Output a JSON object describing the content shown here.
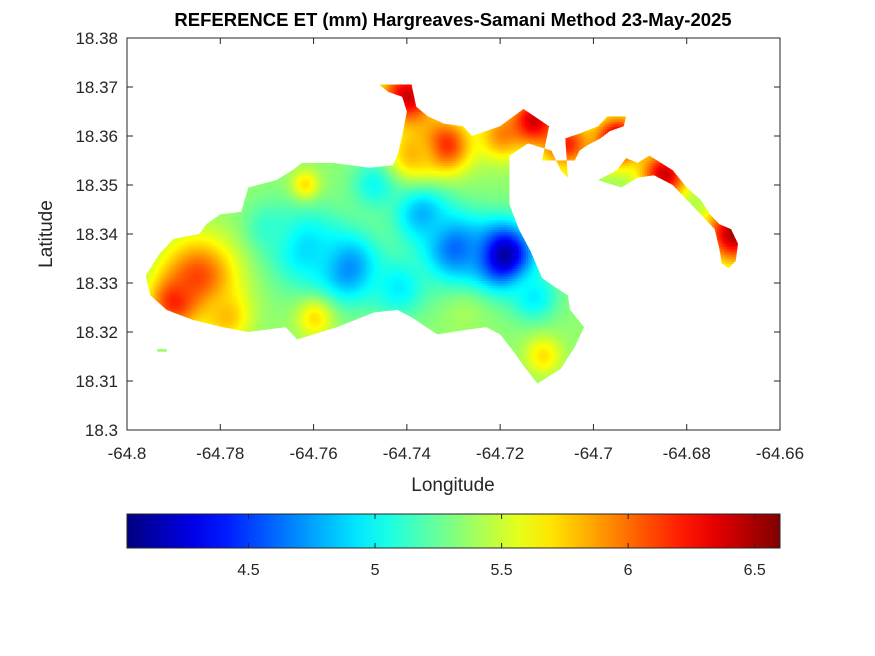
{
  "chart_data": {
    "type": "heatmap",
    "title": "REFERENCE ET (mm) Hargreaves-Samani Method  23-May-2025",
    "xlabel": "Longitude",
    "ylabel": "Latitude",
    "xlim": [
      -64.8,
      -64.66
    ],
    "ylim": [
      18.3,
      18.38
    ],
    "xticks": [
      -64.8,
      -64.78,
      -64.76,
      -64.74,
      -64.72,
      -64.7,
      -64.68,
      -64.66
    ],
    "xtick_labels": [
      "-64.8",
      "-64.78",
      "-64.76",
      "-64.74",
      "-64.72",
      "-64.7",
      "-64.68",
      "-64.66"
    ],
    "yticks": [
      18.3,
      18.31,
      18.32,
      18.33,
      18.34,
      18.35,
      18.36,
      18.37,
      18.38
    ],
    "ytick_labels": [
      "18.3",
      "18.31",
      "18.32",
      "18.33",
      "18.34",
      "18.35",
      "18.36",
      "18.37",
      "18.38"
    ],
    "colormap": "jet",
    "colorbar": {
      "orientation": "horizontal",
      "location": "bottom",
      "range": [
        4.02,
        6.6
      ],
      "ticks": [
        4.5,
        5,
        5.5,
        6,
        6.5
      ],
      "tick_labels": [
        "4.5",
        "5",
        "5.5",
        "6",
        "6.5"
      ]
    },
    "grid": false,
    "field": {
      "base_value": 5.35,
      "min_value": 4.02,
      "max_value": 6.6,
      "anchors": [
        {
          "lon": -64.7195,
          "lat": 18.3355,
          "value": 4.05,
          "spread": 0.0065
        },
        {
          "lon": -64.73,
          "lat": 18.337,
          "value": 4.6,
          "spread": 0.007
        },
        {
          "lon": -64.753,
          "lat": 18.333,
          "value": 4.65,
          "spread": 0.007
        },
        {
          "lon": -64.762,
          "lat": 18.337,
          "value": 4.9,
          "spread": 0.008
        },
        {
          "lon": -64.737,
          "lat": 18.344,
          "value": 4.8,
          "spread": 0.006
        },
        {
          "lon": -64.742,
          "lat": 18.329,
          "value": 4.95,
          "spread": 0.006
        },
        {
          "lon": -64.713,
          "lat": 18.327,
          "value": 4.95,
          "spread": 0.005
        },
        {
          "lon": -64.747,
          "lat": 18.35,
          "value": 5.0,
          "spread": 0.005
        },
        {
          "lon": -64.77,
          "lat": 18.341,
          "value": 5.1,
          "spread": 0.005
        },
        {
          "lon": -64.785,
          "lat": 18.331,
          "value": 6.1,
          "spread": 0.008
        },
        {
          "lon": -64.79,
          "lat": 18.326,
          "value": 6.2,
          "spread": 0.005
        },
        {
          "lon": -64.779,
          "lat": 18.323,
          "value": 5.8,
          "spread": 0.005
        },
        {
          "lon": -64.76,
          "lat": 18.3225,
          "value": 5.7,
          "spread": 0.004
        },
        {
          "lon": -64.732,
          "lat": 18.358,
          "value": 6.2,
          "spread": 0.0055
        },
        {
          "lon": -64.739,
          "lat": 18.356,
          "value": 5.8,
          "spread": 0.005
        },
        {
          "lon": -64.74,
          "lat": 18.368,
          "value": 6.4,
          "spread": 0.006
        },
        {
          "lon": -64.72,
          "lat": 18.36,
          "value": 5.9,
          "spread": 0.005
        },
        {
          "lon": -64.706,
          "lat": 18.358,
          "value": 6.2,
          "spread": 0.005
        },
        {
          "lon": -64.713,
          "lat": 18.363,
          "value": 6.4,
          "spread": 0.005
        },
        {
          "lon": -64.706,
          "lat": 18.35,
          "value": 5.7,
          "spread": 0.004
        },
        {
          "lon": -64.695,
          "lat": 18.359,
          "value": 6.5,
          "spread": 0.005
        },
        {
          "lon": -64.685,
          "lat": 18.352,
          "value": 6.4,
          "spread": 0.005
        },
        {
          "lon": -64.67,
          "lat": 18.34,
          "value": 6.5,
          "spread": 0.006
        },
        {
          "lon": -64.711,
          "lat": 18.315,
          "value": 5.7,
          "spread": 0.004
        },
        {
          "lon": -64.762,
          "lat": 18.35,
          "value": 5.7,
          "spread": 0.003
        },
        {
          "lon": -64.728,
          "lat": 18.323,
          "value": 5.4,
          "spread": 0.004
        }
      ],
      "regions": [
        [
          [
            -64.7915,
            18.3245
          ],
          [
            -64.786,
            18.3225
          ],
          [
            -64.7795,
            18.321
          ],
          [
            -64.774,
            18.32
          ],
          [
            -64.766,
            18.321
          ],
          [
            -64.7635,
            18.3185
          ],
          [
            -64.755,
            18.321
          ],
          [
            -64.747,
            18.324
          ],
          [
            -64.742,
            18.3245
          ],
          [
            -64.739,
            18.323
          ],
          [
            -64.7335,
            18.3195
          ],
          [
            -64.727,
            18.3205
          ],
          [
            -64.723,
            18.321
          ],
          [
            -64.72,
            18.3195
          ],
          [
            -64.7175,
            18.3165
          ],
          [
            -64.7145,
            18.3125
          ],
          [
            -64.712,
            18.3095
          ],
          [
            -64.707,
            18.3125
          ],
          [
            -64.704,
            18.317
          ],
          [
            -64.702,
            18.321
          ],
          [
            -64.705,
            18.3245
          ],
          [
            -64.7055,
            18.3275
          ],
          [
            -64.708,
            18.329
          ],
          [
            -64.711,
            18.331
          ],
          [
            -64.7135,
            18.3365
          ],
          [
            -64.716,
            18.341
          ],
          [
            -64.718,
            18.346
          ],
          [
            -64.718,
            18.356
          ],
          [
            -64.714,
            18.3585
          ],
          [
            -64.709,
            18.357
          ],
          [
            -64.707,
            18.353
          ],
          [
            -64.7055,
            18.3515
          ],
          [
            -64.706,
            18.3595
          ],
          [
            -64.703,
            18.3605
          ],
          [
            -64.699,
            18.362
          ],
          [
            -64.697,
            18.364
          ],
          [
            -64.693,
            18.364
          ],
          [
            -64.6935,
            18.362
          ],
          [
            -64.6965,
            18.361
          ],
          [
            -64.6985,
            18.3595
          ],
          [
            -64.7015,
            18.358
          ],
          [
            -64.703,
            18.357
          ],
          [
            -64.704,
            18.355
          ],
          [
            -64.711,
            18.355
          ],
          [
            -64.7095,
            18.362
          ],
          [
            -64.715,
            18.3655
          ],
          [
            -64.72,
            18.362
          ],
          [
            -64.726,
            18.36
          ],
          [
            -64.728,
            18.362
          ],
          [
            -64.732,
            18.3625
          ],
          [
            -64.7355,
            18.364
          ],
          [
            -64.738,
            18.366
          ],
          [
            -64.739,
            18.3705
          ],
          [
            -64.746,
            18.3705
          ],
          [
            -64.744,
            18.369
          ],
          [
            -64.741,
            18.368
          ],
          [
            -64.74,
            18.365
          ],
          [
            -64.741,
            18.36
          ],
          [
            -64.742,
            18.356
          ],
          [
            -64.743,
            18.354
          ],
          [
            -64.748,
            18.3535
          ],
          [
            -64.756,
            18.3545
          ],
          [
            -64.7625,
            18.3545
          ],
          [
            -64.7645,
            18.353
          ],
          [
            -64.768,
            18.351
          ],
          [
            -64.774,
            18.3495
          ],
          [
            -64.7755,
            18.3445
          ],
          [
            -64.78,
            18.344
          ],
          [
            -64.783,
            18.342
          ],
          [
            -64.7845,
            18.34
          ],
          [
            -64.79,
            18.339
          ],
          [
            -64.793,
            18.336
          ],
          [
            -64.796,
            18.3315
          ],
          [
            -64.795,
            18.3275
          ]
        ],
        [
          [
            -64.699,
            18.351
          ],
          [
            -64.695,
            18.353
          ],
          [
            -64.693,
            18.3555
          ],
          [
            -64.6905,
            18.3545
          ],
          [
            -64.688,
            18.356
          ],
          [
            -64.683,
            18.353
          ],
          [
            -64.68,
            18.3495
          ],
          [
            -64.677,
            18.347
          ],
          [
            -64.675,
            18.344
          ],
          [
            -64.673,
            18.342
          ],
          [
            -64.6705,
            18.341
          ],
          [
            -64.669,
            18.338
          ],
          [
            -64.6695,
            18.3345
          ],
          [
            -64.671,
            18.333
          ],
          [
            -64.6725,
            18.334
          ],
          [
            -64.673,
            18.337
          ],
          [
            -64.674,
            18.341
          ],
          [
            -64.677,
            18.344
          ],
          [
            -64.68,
            18.347
          ],
          [
            -64.683,
            18.35
          ],
          [
            -64.687,
            18.352
          ],
          [
            -64.6905,
            18.3515
          ],
          [
            -64.694,
            18.3495
          ]
        ],
        [
          [
            -64.7935,
            18.3165
          ],
          [
            -64.7915,
            18.3165
          ],
          [
            -64.7915,
            18.316
          ],
          [
            -64.7935,
            18.316
          ]
        ]
      ]
    }
  }
}
